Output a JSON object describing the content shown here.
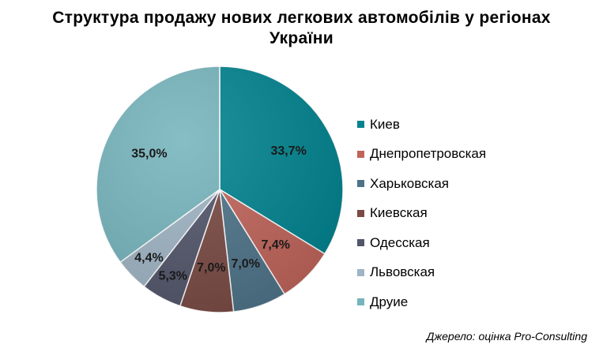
{
  "title_line1": "Структура  продажу  нових  легкових  автомобілів  у регіонах",
  "title_line2": "України",
  "source": "Джерело: оцінка Pro-Consulting",
  "chart_data": {
    "type": "pie",
    "title": "Структура  продажу  нових  легкових  автомобілів  у регіонах України",
    "categories": [
      "Киев",
      "Днепропетровская",
      "Харьковская",
      "Киевская",
      "Одесская",
      "Львовская",
      "Друие"
    ],
    "values": [
      33.7,
      7.4,
      7.0,
      7.0,
      5.3,
      4.4,
      35.0
    ],
    "labels": [
      "33,7%",
      "7,4%",
      "7,0%",
      "7,0%",
      "5,3%",
      "4,4%",
      "35,0%"
    ],
    "colors": [
      "#00838f",
      "#c0645a",
      "#4e7389",
      "#7a4a44",
      "#52566a",
      "#9fb4c4",
      "#76b4bc"
    ],
    "legend_position": "right",
    "start": "12 o'clock",
    "direction": "clockwise"
  }
}
